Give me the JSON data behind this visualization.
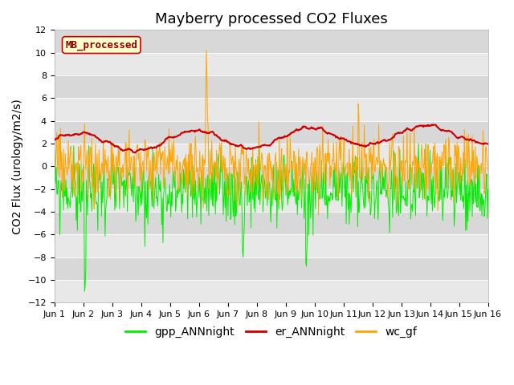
{
  "title": "Mayberry processed CO2 Fluxes",
  "ylabel": "CO2 Flux (urology/m2/s)",
  "ylim": [
    -12,
    12
  ],
  "yticks": [
    -12,
    -10,
    -8,
    -6,
    -4,
    -2,
    0,
    2,
    4,
    6,
    8,
    10,
    12
  ],
  "n_days": 15,
  "pts_per_day": 48,
  "xtick_labels": [
    "Jun 1",
    "Jun 2",
    "Jun 3",
    "Jun 4",
    "Jun 5",
    "Jun 6",
    "Jun 7",
    "Jun 8",
    "Jun 9",
    "Jun 10",
    "Jun 11",
    "Jun 12",
    "Jun 13",
    "Jun 14",
    "Jun 15",
    "Jun 16"
  ],
  "colors": {
    "gpp": "#00ee00",
    "er": "#cc0000",
    "wc": "#ffa500"
  },
  "linewidths": {
    "gpp": 0.7,
    "er": 1.5,
    "wc": 0.7
  },
  "legend_labels": [
    "gpp_ANNnight",
    "er_ANNnight",
    "wc_gf"
  ],
  "mb_label": "MB_processed",
  "mb_text_color": "#8b0000",
  "mb_bg_color": "#ffffcc",
  "mb_border_color": "#cc0000",
  "bg_color_light": "#e8e8e8",
  "bg_color_dark": "#d8d8d8",
  "title_fontsize": 13,
  "axis_label_fontsize": 10,
  "tick_fontsize": 8,
  "legend_fontsize": 10
}
